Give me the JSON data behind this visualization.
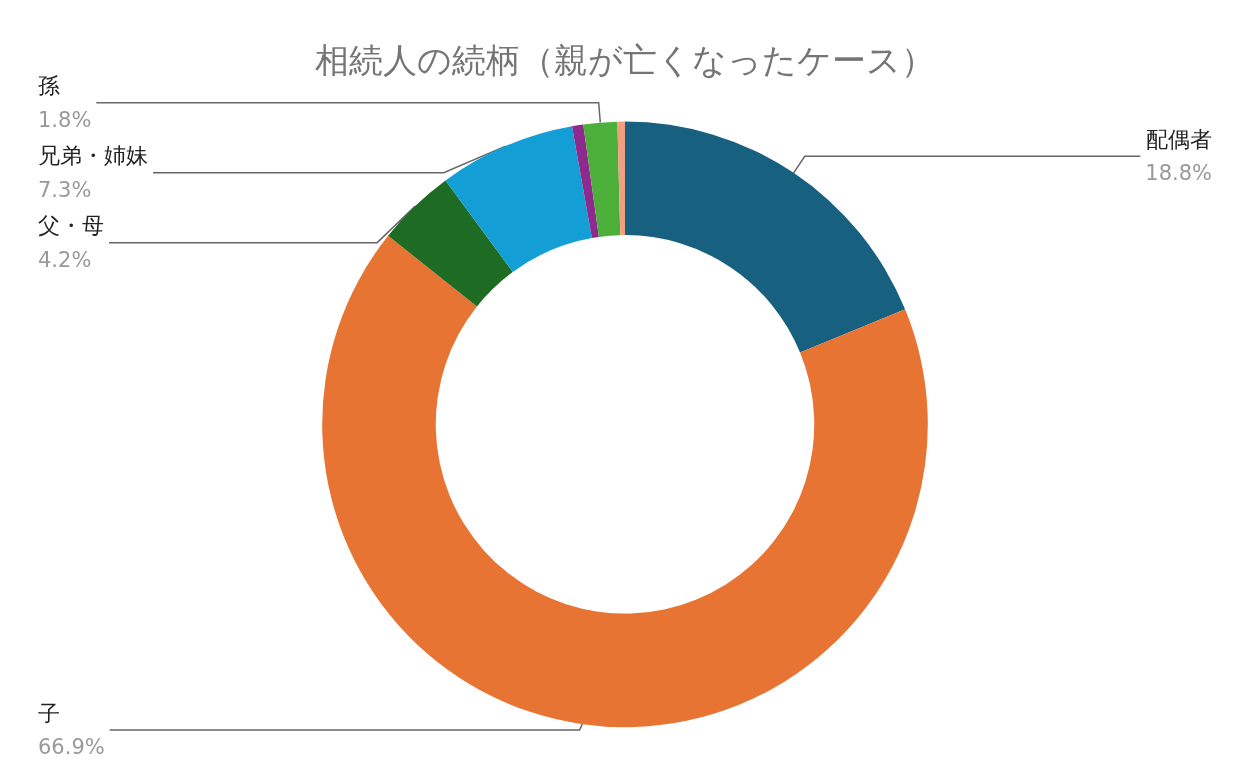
{
  "chart_data": {
    "type": "donut",
    "title": "相続人の続柄（親が亡くなったケース）",
    "categories": [
      "配偶者",
      "子",
      "父・母",
      "兄弟・姉妹",
      null,
      "孫",
      null
    ],
    "values": [
      18.8,
      66.9,
      4.2,
      7.3,
      0.6,
      1.8,
      0.4
    ],
    "value_labels": [
      "18.8%",
      "66.9%",
      "4.2%",
      "7.3%",
      null,
      "1.8%",
      null
    ],
    "colors": [
      "#17607f",
      "#e87433",
      "#1e6b24",
      "#139fd6",
      "#8e2a8e",
      "#4caf3a",
      "#f0a080"
    ],
    "legend": false
  }
}
